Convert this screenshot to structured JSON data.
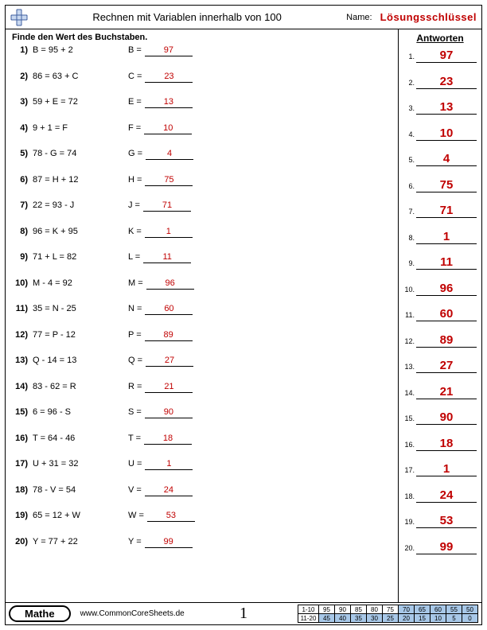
{
  "header": {
    "title": "Rechnen mit Variablen innerhalb von 100",
    "name_label": "Name:",
    "answer_key": "Lösungsschlüssel"
  },
  "instruction": "Finde den Wert des Buchstaben.",
  "answers_title": "Antworten",
  "problems": [
    {
      "n": "1)",
      "expr": "B = 95 + 2",
      "var": "B =",
      "ans": "97"
    },
    {
      "n": "2)",
      "expr": "86 = 63 + C",
      "var": "C =",
      "ans": "23"
    },
    {
      "n": "3)",
      "expr": "59 + E = 72",
      "var": "E =",
      "ans": "13"
    },
    {
      "n": "4)",
      "expr": "9 + 1 = F",
      "var": "F =",
      "ans": "10"
    },
    {
      "n": "5)",
      "expr": "78 - G = 74",
      "var": "G =",
      "ans": "4"
    },
    {
      "n": "6)",
      "expr": "87 = H + 12",
      "var": "H =",
      "ans": "75"
    },
    {
      "n": "7)",
      "expr": "22 = 93 - J",
      "var": "J =",
      "ans": "71"
    },
    {
      "n": "8)",
      "expr": "96 = K + 95",
      "var": "K =",
      "ans": "1"
    },
    {
      "n": "9)",
      "expr": "71 + L = 82",
      "var": "L =",
      "ans": "11"
    },
    {
      "n": "10)",
      "expr": "M - 4 = 92",
      "var": "M =",
      "ans": "96"
    },
    {
      "n": "11)",
      "expr": "35 = N - 25",
      "var": "N =",
      "ans": "60"
    },
    {
      "n": "12)",
      "expr": "77 = P - 12",
      "var": "P =",
      "ans": "89"
    },
    {
      "n": "13)",
      "expr": "Q - 14 = 13",
      "var": "Q =",
      "ans": "27"
    },
    {
      "n": "14)",
      "expr": "83 - 62 = R",
      "var": "R =",
      "ans": "21"
    },
    {
      "n": "15)",
      "expr": "6 = 96 - S",
      "var": "S =",
      "ans": "90"
    },
    {
      "n": "16)",
      "expr": "T = 64 - 46",
      "var": "T =",
      "ans": "18"
    },
    {
      "n": "17)",
      "expr": "U + 31 = 32",
      "var": "U =",
      "ans": "1"
    },
    {
      "n": "18)",
      "expr": "78 - V = 54",
      "var": "V =",
      "ans": "24"
    },
    {
      "n": "19)",
      "expr": "65 = 12 + W",
      "var": "W =",
      "ans": "53"
    },
    {
      "n": "20)",
      "expr": "Y = 77 + 22",
      "var": "Y =",
      "ans": "99"
    }
  ],
  "footer": {
    "subject": "Mathe",
    "website": "www.CommonCoreSheets.de",
    "page_number": "1",
    "score": {
      "row1_label": "1-10",
      "row1": [
        "95",
        "90",
        "85",
        "80",
        "75",
        "70",
        "65",
        "60",
        "55",
        "50"
      ],
      "row2_label": "11-20",
      "row2": [
        "45",
        "40",
        "35",
        "30",
        "25",
        "20",
        "15",
        "10",
        "5",
        "0"
      ],
      "shaded_start_col": 5
    }
  },
  "colors": {
    "answer_red": "#c00000",
    "grid_shaded": "#a8c8e8"
  }
}
